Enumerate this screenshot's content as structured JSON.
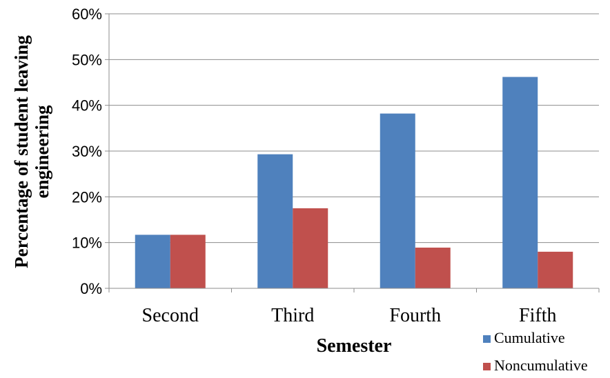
{
  "chart_data": {
    "type": "bar",
    "title": "",
    "xlabel": "Semester",
    "ylabel_lines": [
      "Percentage of student leaving",
      "engineering"
    ],
    "categories": [
      "Second",
      "Third",
      "Fourth",
      "Fifth"
    ],
    "series": [
      {
        "name": "Cumulative",
        "color": "#4F81BD",
        "values": [
          0.117,
          0.293,
          0.382,
          0.462
        ]
      },
      {
        "name": "Noncumulative",
        "color": "#C0504D",
        "values": [
          0.117,
          0.175,
          0.089,
          0.08
        ]
      }
    ],
    "ylim": [
      0,
      0.6
    ],
    "yticks": [
      0,
      0.1,
      0.2,
      0.3,
      0.4,
      0.5,
      0.6
    ],
    "ytick_labels": [
      "0%",
      "10%",
      "20%",
      "30%",
      "40%",
      "50%",
      "60%"
    ],
    "grid": true,
    "legend_position": "bottom-right"
  }
}
